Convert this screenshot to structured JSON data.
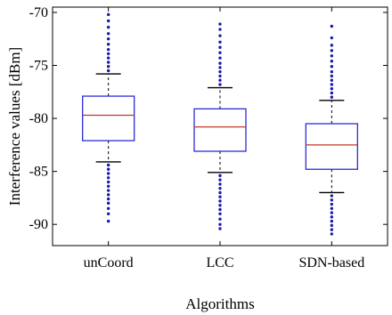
{
  "chart_data": {
    "type": "box",
    "title": "",
    "xlabel": "Algorithms",
    "ylabel": "Interference values [dBm]",
    "ylim": [
      -92,
      -69.5
    ],
    "yticks": [
      -70,
      -75,
      -80,
      -85,
      -90
    ],
    "ytick_labels": [
      "-70",
      "-75",
      "-80",
      "-85",
      "-90"
    ],
    "grid": false,
    "categories": [
      "unCoord",
      "LCC",
      "SDN-based"
    ],
    "boxes": [
      {
        "category": "unCoord",
        "q1": -82.1,
        "median": -79.7,
        "q3": -77.9,
        "whisker_low": -84.1,
        "whisker_high": -75.8,
        "outliers_low": [
          -84.4,
          -84.8,
          -85.2,
          -85.6,
          -86.0,
          -86.4,
          -86.8,
          -87.2,
          -87.6,
          -88.0,
          -88.5,
          -89.0,
          -89.7
        ],
        "outliers_high": [
          -75.5,
          -75.1,
          -74.7,
          -74.3,
          -73.9,
          -73.5,
          -73.0,
          -72.5,
          -72.0,
          -71.4,
          -70.8,
          -70.2
        ]
      },
      {
        "category": "LCC",
        "q1": -83.1,
        "median": -80.8,
        "q3": -79.1,
        "whisker_low": -85.1,
        "whisker_high": -77.1,
        "outliers_low": [
          -85.4,
          -85.8,
          -86.2,
          -86.6,
          -87.0,
          -87.4,
          -87.8,
          -88.2,
          -88.6,
          -89.0,
          -89.5,
          -90.0,
          -90.4
        ],
        "outliers_high": [
          -76.8,
          -76.4,
          -76.0,
          -75.6,
          -75.2,
          -74.8,
          -74.3,
          -73.8,
          -73.3,
          -72.8,
          -72.2,
          -71.6,
          -71.1
        ]
      },
      {
        "category": "SDN-based",
        "q1": -84.8,
        "median": -82.5,
        "q3": -80.5,
        "whisker_low": -87.0,
        "whisker_high": -78.3,
        "outliers_low": [
          -87.3,
          -87.7,
          -88.1,
          -88.5,
          -88.9,
          -89.3,
          -89.7,
          -90.1,
          -90.5,
          -90.9
        ],
        "outliers_high": [
          -78.0,
          -77.6,
          -77.2,
          -76.8,
          -76.4,
          -76.0,
          -75.6,
          -75.1,
          -74.6,
          -74.1,
          -73.6,
          -73.1,
          -72.4,
          -71.3
        ]
      }
    ],
    "colors": {
      "box": "#2b2bd6",
      "median": "#c0392b",
      "whisker": "#000000",
      "outlier": "#1a1aa8",
      "axis": "#000000"
    }
  }
}
